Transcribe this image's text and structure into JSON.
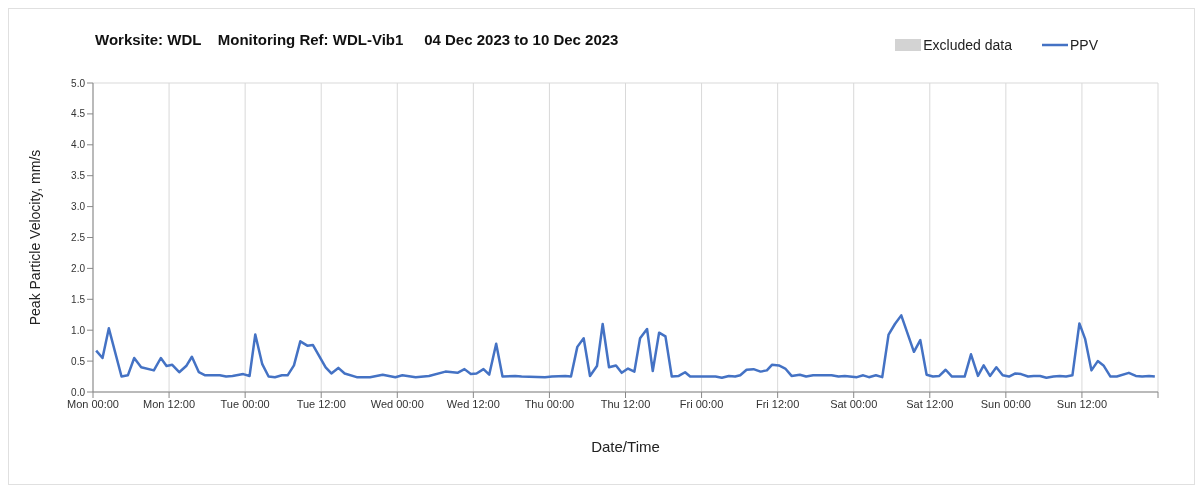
{
  "chart_data": {
    "type": "line",
    "title": "Worksite: WDL    Monitoring Ref: WDL-Vib1     04 Dec 2023 to 10 Dec 2023",
    "xlabel": "Date/Time",
    "ylabel": "Peak Particle Velocity, mm/s",
    "xlim": [
      "2023-12-04T00:00",
      "2023-12-11T00:00"
    ],
    "xticks": [
      {
        "value": "2023-12-04T00:00",
        "label": "Mon 00:00"
      },
      {
        "value": "2023-12-04T12:00",
        "label": "Mon 12:00"
      },
      {
        "value": "2023-12-05T00:00",
        "label": "Tue 00:00"
      },
      {
        "value": "2023-12-05T12:00",
        "label": "Tue 12:00"
      },
      {
        "value": "2023-12-06T00:00",
        "label": "Wed 00:00"
      },
      {
        "value": "2023-12-06T12:00",
        "label": "Wed 12:00"
      },
      {
        "value": "2023-12-07T00:00",
        "label": "Thu 00:00"
      },
      {
        "value": "2023-12-07T12:00",
        "label": "Thu 12:00"
      },
      {
        "value": "2023-12-08T00:00",
        "label": "Fri 00:00"
      },
      {
        "value": "2023-12-08T12:00",
        "label": "Fri 12:00"
      },
      {
        "value": "2023-12-09T00:00",
        "label": "Sat 00:00"
      },
      {
        "value": "2023-12-09T12:00",
        "label": "Sat 12:00"
      },
      {
        "value": "2023-12-10T00:00",
        "label": "Sun 00:00"
      },
      {
        "value": "2023-12-10T12:00",
        "label": "Sun 12:00"
      },
      {
        "value": "2023-12-11T00:00",
        "label": null
      }
    ],
    "ylim": [
      0,
      5
    ],
    "yticks": [
      {
        "value": 0,
        "label": "0.0"
      },
      {
        "value": 0.5,
        "label": "0.5"
      },
      {
        "value": 1,
        "label": "1.0"
      },
      {
        "value": 1.5,
        "label": "1.5"
      },
      {
        "value": 2,
        "label": "2.0"
      },
      {
        "value": 2.5,
        "label": "2.5"
      },
      {
        "value": 3,
        "label": "3.0"
      },
      {
        "value": 3.5,
        "label": "3.5"
      },
      {
        "value": 4,
        "label": "4.0"
      },
      {
        "value": 4.5,
        "label": "4.5"
      },
      {
        "value": 5,
        "label": "5.0"
      }
    ],
    "grid": true,
    "legend": "top right",
    "marker": "none",
    "line_style": "solid",
    "series": [
      {
        "name": "Excluded data",
        "type": "area",
        "color": "#d3d3d3"
      },
      {
        "name": "PPV",
        "color": "#4472c4",
        "x": [
          "2023-12-04T00:30",
          "2023-12-04T01:30",
          "2023-12-04T02:30",
          "2023-12-04T04:30",
          "2023-12-04T05:30",
          "2023-12-04T06:30",
          "2023-12-04T07:36",
          "2023-12-04T09:36",
          "2023-12-04T10:42",
          "2023-12-04T11:36",
          "2023-12-04T12:30",
          "2023-12-04T13:36",
          "2023-12-04T14:42",
          "2023-12-04T15:36",
          "2023-12-04T16:42",
          "2023-12-04T17:42",
          "2023-12-04T20:00",
          "2023-12-04T21:00",
          "2023-12-04T22:00",
          "2023-12-04T23:42",
          "2023-12-05T00:42",
          "2023-12-05T01:36",
          "2023-12-05T02:42",
          "2023-12-05T03:42",
          "2023-12-05T04:42",
          "2023-12-05T05:48",
          "2023-12-05T06:42",
          "2023-12-05T07:42",
          "2023-12-05T08:42",
          "2023-12-05T09:48",
          "2023-12-05T10:42",
          "2023-12-05T12:42",
          "2023-12-05T13:36",
          "2023-12-05T14:42",
          "2023-12-05T15:42",
          "2023-12-05T17:36",
          "2023-12-05T19:42",
          "2023-12-05T21:42",
          "2023-12-05T23:42",
          "2023-12-06T00:48",
          "2023-12-06T02:54",
          "2023-12-06T05:00",
          "2023-12-06T07:36",
          "2023-12-06T09:30",
          "2023-12-06T10:36",
          "2023-12-06T11:36",
          "2023-12-06T12:30",
          "2023-12-06T13:36",
          "2023-12-06T14:30",
          "2023-12-06T15:36",
          "2023-12-06T16:36",
          "2023-12-06T18:36",
          "2023-12-06T19:36",
          "2023-12-06T23:18",
          "2023-12-07T00:24",
          "2023-12-07T02:30",
          "2023-12-07T03:24",
          "2023-12-07T04:24",
          "2023-12-07T05:24",
          "2023-12-07T06:24",
          "2023-12-07T07:30",
          "2023-12-07T08:24",
          "2023-12-07T09:24",
          "2023-12-07T10:30",
          "2023-12-07T11:24",
          "2023-12-07T12:24",
          "2023-12-07T13:24",
          "2023-12-07T14:18",
          "2023-12-07T15:24",
          "2023-12-07T16:18",
          "2023-12-07T17:18",
          "2023-12-07T18:18",
          "2023-12-07T19:18",
          "2023-12-07T20:24",
          "2023-12-07T21:24",
          "2023-12-07T22:12",
          "2023-12-08T02:12",
          "2023-12-08T03:12",
          "2023-12-08T04:18",
          "2023-12-08T05:18",
          "2023-12-08T06:06",
          "2023-12-08T07:06",
          "2023-12-08T08:12",
          "2023-12-08T09:18",
          "2023-12-08T10:18",
          "2023-12-08T11:06",
          "2023-12-08T12:12",
          "2023-12-08T13:12",
          "2023-12-08T14:12",
          "2023-12-08T15:30",
          "2023-12-08T16:30",
          "2023-12-08T17:36",
          "2023-12-08T20:30",
          "2023-12-08T21:36",
          "2023-12-08T22:36",
          "2023-12-09T00:30",
          "2023-12-09T01:30",
          "2023-12-09T02:24",
          "2023-12-09T03:30",
          "2023-12-09T04:30",
          "2023-12-09T05:30",
          "2023-12-09T06:30",
          "2023-12-09T07:30",
          "2023-12-09T09:30",
          "2023-12-09T10:30",
          "2023-12-09T11:30",
          "2023-12-09T12:30",
          "2023-12-09T13:30",
          "2023-12-09T14:30",
          "2023-12-09T15:30",
          "2023-12-09T17:30",
          "2023-12-09T18:30",
          "2023-12-09T19:36",
          "2023-12-09T20:30",
          "2023-12-09T21:30",
          "2023-12-09T22:30",
          "2023-12-09T23:30",
          "2023-12-10T00:30",
          "2023-12-10T01:30",
          "2023-12-10T02:24",
          "2023-12-10T03:30",
          "2023-12-10T04:24",
          "2023-12-10T05:24",
          "2023-12-10T06:24",
          "2023-12-10T07:30",
          "2023-12-10T08:30",
          "2023-12-10T09:30",
          "2023-12-10T10:30",
          "2023-12-10T11:36",
          "2023-12-10T12:30",
          "2023-12-10T13:30",
          "2023-12-10T14:30",
          "2023-12-10T15:24",
          "2023-12-10T16:30",
          "2023-12-10T17:30",
          "2023-12-10T19:24",
          "2023-12-10T20:30",
          "2023-12-10T21:30",
          "2023-12-10T22:36",
          "2023-12-10T23:30"
        ],
        "values": [
          0.67,
          0.55,
          1.03,
          0.25,
          0.27,
          0.55,
          0.4,
          0.35,
          0.55,
          0.42,
          0.44,
          0.32,
          0.42,
          0.57,
          0.32,
          0.27,
          0.27,
          0.25,
          0.26,
          0.29,
          0.26,
          0.93,
          0.45,
          0.25,
          0.24,
          0.27,
          0.27,
          0.43,
          0.82,
          0.75,
          0.76,
          0.4,
          0.3,
          0.39,
          0.3,
          0.24,
          0.24,
          0.28,
          0.24,
          0.27,
          0.24,
          0.26,
          0.33,
          0.31,
          0.37,
          0.29,
          0.3,
          0.37,
          0.28,
          0.78,
          0.25,
          0.26,
          0.25,
          0.24,
          0.25,
          0.26,
          0.25,
          0.73,
          0.87,
          0.26,
          0.42,
          1.1,
          0.4,
          0.43,
          0.31,
          0.38,
          0.33,
          0.87,
          1.02,
          0.34,
          0.96,
          0.9,
          0.25,
          0.26,
          0.32,
          0.25,
          0.25,
          0.23,
          0.26,
          0.25,
          0.27,
          0.36,
          0.37,
          0.33,
          0.35,
          0.44,
          0.43,
          0.38,
          0.26,
          0.28,
          0.25,
          0.27,
          0.27,
          0.25,
          0.26,
          0.24,
          0.27,
          0.24,
          0.27,
          0.24,
          0.93,
          1.1,
          1.24,
          0.65,
          0.84,
          0.28,
          0.25,
          0.26,
          0.36,
          0.25,
          0.25,
          0.61,
          0.26,
          0.43,
          0.26,
          0.4,
          0.27,
          0.25,
          0.3,
          0.29,
          0.25,
          0.26,
          0.26,
          0.23,
          0.25,
          0.26,
          0.25,
          0.27,
          1.11,
          0.86,
          0.35,
          0.5,
          0.43,
          0.25,
          0.25,
          0.31,
          0.26,
          0.25,
          0.26,
          0.25
        ]
      }
    ]
  }
}
